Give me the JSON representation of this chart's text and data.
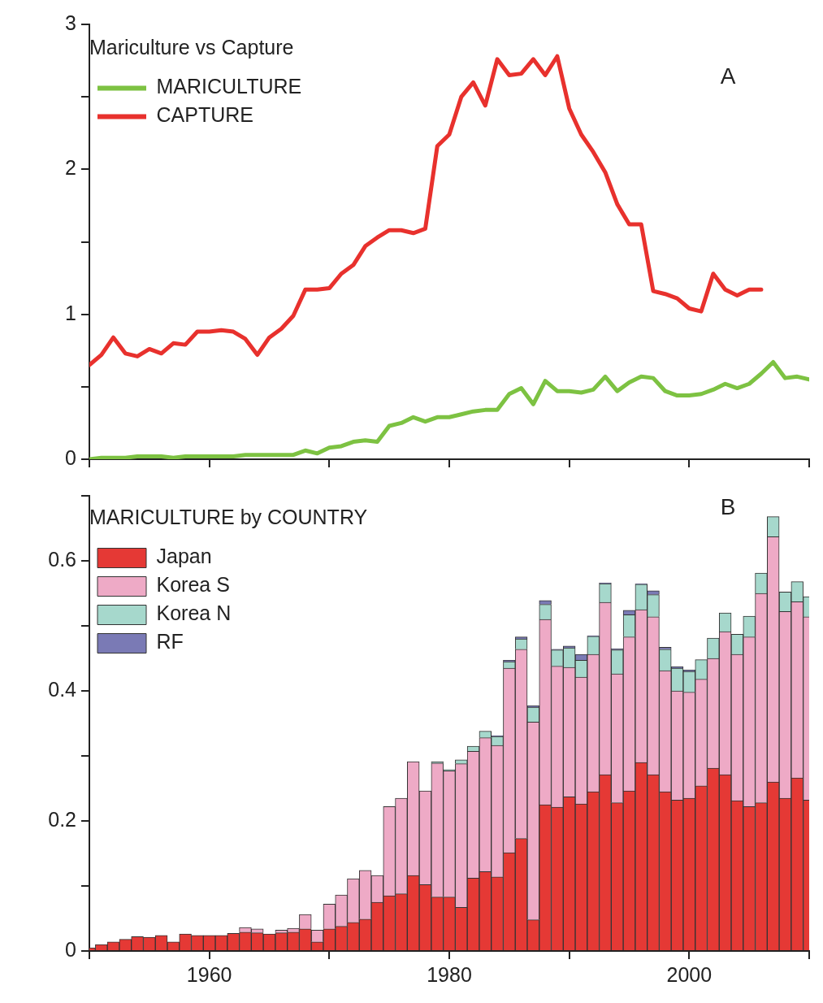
{
  "chart_data": [
    {
      "type": "line",
      "legend_title": "Mariculture vs Capture",
      "legend": "top left",
      "annotations": [
        "A"
      ],
      "tick_labels": "y",
      "marker": "none",
      "line_style": "solid",
      "xlim": [
        1950,
        2010
      ],
      "xticks": [
        1950,
        1960,
        1970,
        1980,
        1990,
        2000,
        2010
      ],
      "ylim": [
        0,
        3
      ],
      "yticks": [
        0,
        {
          "value": 0.5,
          "label": null
        },
        1,
        {
          "value": 1.5,
          "label": null
        },
        2,
        {
          "value": 2.5,
          "label": null
        },
        3
      ],
      "series": [
        {
          "name": "MARICULTURE",
          "color": "#7dc242",
          "x": [
            1950,
            1951,
            1952,
            1953,
            1954,
            1955,
            1956,
            1957,
            1958,
            1959,
            1960,
            1961,
            1962,
            1963,
            1964,
            1965,
            1966,
            1967,
            1968,
            1969,
            1970,
            1971,
            1972,
            1973,
            1974,
            1975,
            1976,
            1977,
            1978,
            1979,
            1980,
            1981,
            1982,
            1983,
            1984,
            1985,
            1986,
            1987,
            1988,
            1989,
            1990,
            1991,
            1992,
            1993,
            1994,
            1995,
            1996,
            1997,
            1998,
            1999,
            2000,
            2001,
            2002,
            2003,
            2004,
            2005,
            2006,
            2007,
            2008,
            2009,
            2010
          ],
          "values": [
            0.0,
            0.01,
            0.01,
            0.01,
            0.02,
            0.02,
            0.02,
            0.01,
            0.02,
            0.02,
            0.02,
            0.02,
            0.02,
            0.03,
            0.03,
            0.03,
            0.03,
            0.03,
            0.06,
            0.04,
            0.08,
            0.09,
            0.12,
            0.13,
            0.12,
            0.23,
            0.25,
            0.29,
            0.26,
            0.29,
            0.29,
            0.31,
            0.33,
            0.34,
            0.34,
            0.45,
            0.49,
            0.38,
            0.54,
            0.47,
            0.47,
            0.46,
            0.48,
            0.57,
            0.47,
            0.53,
            0.57,
            0.56,
            0.47,
            0.44,
            0.44,
            0.45,
            0.48,
            0.52,
            0.49,
            0.52,
            0.59,
            0.67,
            0.56,
            0.57,
            0.55
          ]
        },
        {
          "name": "CAPTURE",
          "color": "#e8312d",
          "x": [
            1950,
            1951,
            1952,
            1953,
            1954,
            1955,
            1956,
            1957,
            1958,
            1959,
            1960,
            1961,
            1962,
            1963,
            1964,
            1965,
            1966,
            1967,
            1968,
            1969,
            1970,
            1971,
            1972,
            1973,
            1974,
            1975,
            1976,
            1977,
            1978,
            1979,
            1980,
            1981,
            1982,
            1983,
            1984,
            1985,
            1986,
            1987,
            1988,
            1989,
            1990,
            1991,
            1992,
            1993,
            1994,
            1995,
            1996,
            1997,
            1998,
            1999,
            2000,
            2001,
            2002,
            2003,
            2004,
            2005,
            2006
          ],
          "values": [
            0.65,
            0.72,
            0.84,
            0.73,
            0.71,
            0.76,
            0.73,
            0.8,
            0.79,
            0.88,
            0.88,
            0.89,
            0.88,
            0.83,
            0.72,
            0.84,
            0.9,
            0.99,
            1.17,
            1.17,
            1.18,
            1.28,
            1.34,
            1.47,
            1.53,
            1.58,
            1.58,
            1.56,
            1.59,
            2.16,
            2.24,
            2.5,
            2.6,
            2.44,
            2.76,
            2.65,
            2.66,
            2.76,
            2.65,
            2.78,
            2.42,
            2.24,
            2.12,
            1.98,
            1.76,
            1.62,
            1.62,
            1.16,
            1.14,
            1.11,
            1.04,
            1.02,
            1.28,
            1.17,
            1.13,
            1.17,
            1.17
          ]
        }
      ]
    },
    {
      "type": "bar",
      "stacked": true,
      "legend_title": "MARICULTURE by COUNTRY",
      "legend": "top left",
      "annotations": [
        "B"
      ],
      "x": [
        1950,
        1951,
        1952,
        1953,
        1954,
        1955,
        1956,
        1957,
        1958,
        1959,
        1960,
        1961,
        1962,
        1963,
        1964,
        1965,
        1966,
        1967,
        1968,
        1969,
        1970,
        1971,
        1972,
        1973,
        1974,
        1975,
        1976,
        1977,
        1978,
        1979,
        1980,
        1981,
        1982,
        1983,
        1984,
        1985,
        1986,
        1987,
        1988,
        1989,
        1990,
        1991,
        1992,
        1993,
        1994,
        1995,
        1996,
        1997,
        1998,
        1999,
        2000,
        2001,
        2002,
        2003,
        2004,
        2005,
        2006,
        2007,
        2008,
        2009,
        2010
      ],
      "xlim": [
        1950,
        2010
      ],
      "xticks": [
        {
          "value": 1950,
          "label": null
        },
        1960,
        {
          "value": 1970,
          "label": null
        },
        1980,
        {
          "value": 1990,
          "label": null
        },
        2000,
        {
          "value": 2010,
          "label": null
        }
      ],
      "ylim": [
        0,
        0.7
      ],
      "yticks": [
        0,
        {
          "value": 0.1,
          "label": null
        },
        0.2,
        {
          "value": 0.3,
          "label": null
        },
        0.4,
        {
          "value": 0.5,
          "label": null
        },
        0.6,
        {
          "value": 0.7,
          "label": null
        }
      ],
      "series": [
        {
          "name": "Japan",
          "color": "#e53935",
          "values": [
            0.005,
            0.01,
            0.014,
            0.018,
            0.022,
            0.021,
            0.024,
            0.014,
            0.026,
            0.024,
            0.024,
            0.024,
            0.027,
            0.029,
            0.028,
            0.026,
            0.028,
            0.029,
            0.034,
            0.014,
            0.034,
            0.038,
            0.044,
            0.049,
            0.075,
            0.085,
            0.088,
            0.116,
            0.102,
            0.083,
            0.083,
            0.067,
            0.112,
            0.122,
            0.114,
            0.151,
            0.173,
            0.048,
            0.225,
            0.221,
            0.237,
            0.226,
            0.245,
            0.271,
            0.228,
            0.246,
            0.29,
            0.271,
            0.245,
            0.232,
            0.235,
            0.254,
            0.281,
            0.271,
            0.231,
            0.222,
            0.228,
            0.26,
            0.235,
            0.266,
            0.232
          ]
        },
        {
          "name": "Korea S",
          "color": "#eeaac6",
          "values": [
            0,
            0,
            0,
            0,
            0,
            0,
            0,
            0,
            0,
            0,
            0,
            0,
            0,
            0.007,
            0.006,
            0,
            0.004,
            0.006,
            0.022,
            0.018,
            0.038,
            0.048,
            0.067,
            0.075,
            0.041,
            0.137,
            0.147,
            0.175,
            0.144,
            0.206,
            0.194,
            0.221,
            0.195,
            0.206,
            0.202,
            0.284,
            0.291,
            0.304,
            0.285,
            0.217,
            0.199,
            0.195,
            0.211,
            0.265,
            0.198,
            0.237,
            0.235,
            0.243,
            0.186,
            0.168,
            0.163,
            0.164,
            0.169,
            0.22,
            0.225,
            0.261,
            0.322,
            0.377,
            0.287,
            0.271,
            0.282
          ]
        },
        {
          "name": "Korea N",
          "color": "#a6d8cc",
          "values": [
            0,
            0,
            0,
            0,
            0,
            0,
            0,
            0,
            0,
            0,
            0,
            0,
            0,
            0,
            0,
            0,
            0,
            0,
            0,
            0,
            0,
            0,
            0,
            0,
            0,
            0,
            0,
            0,
            0,
            0.002,
            0.002,
            0.006,
            0.008,
            0.01,
            0.014,
            0.01,
            0.016,
            0.023,
            0.023,
            0.025,
            0.03,
            0.026,
            0.028,
            0.029,
            0.037,
            0.034,
            0.039,
            0.034,
            0.033,
            0.035,
            0.032,
            0.03,
            0.031,
            0.029,
            0.031,
            0.032,
            0.031,
            0.031,
            0.03,
            0.031,
            0.031
          ]
        },
        {
          "name": "RF",
          "color": "#7a7ab5",
          "values": [
            0,
            0,
            0,
            0,
            0,
            0,
            0,
            0,
            0,
            0,
            0,
            0,
            0,
            0,
            0,
            0,
            0,
            0,
            0,
            0,
            0,
            0,
            0,
            0,
            0,
            0,
            0,
            0,
            0,
            0,
            0,
            0,
            0,
            0,
            0.001,
            0.002,
            0.003,
            0.002,
            0.006,
            0.001,
            0.003,
            0.009,
            0.001,
            0.001,
            0.002,
            0.007,
            0.001,
            0.006,
            0.003,
            0.002,
            0.002,
            0,
            0,
            0,
            0,
            0,
            0,
            0,
            0,
            0,
            0
          ]
        }
      ]
    }
  ]
}
